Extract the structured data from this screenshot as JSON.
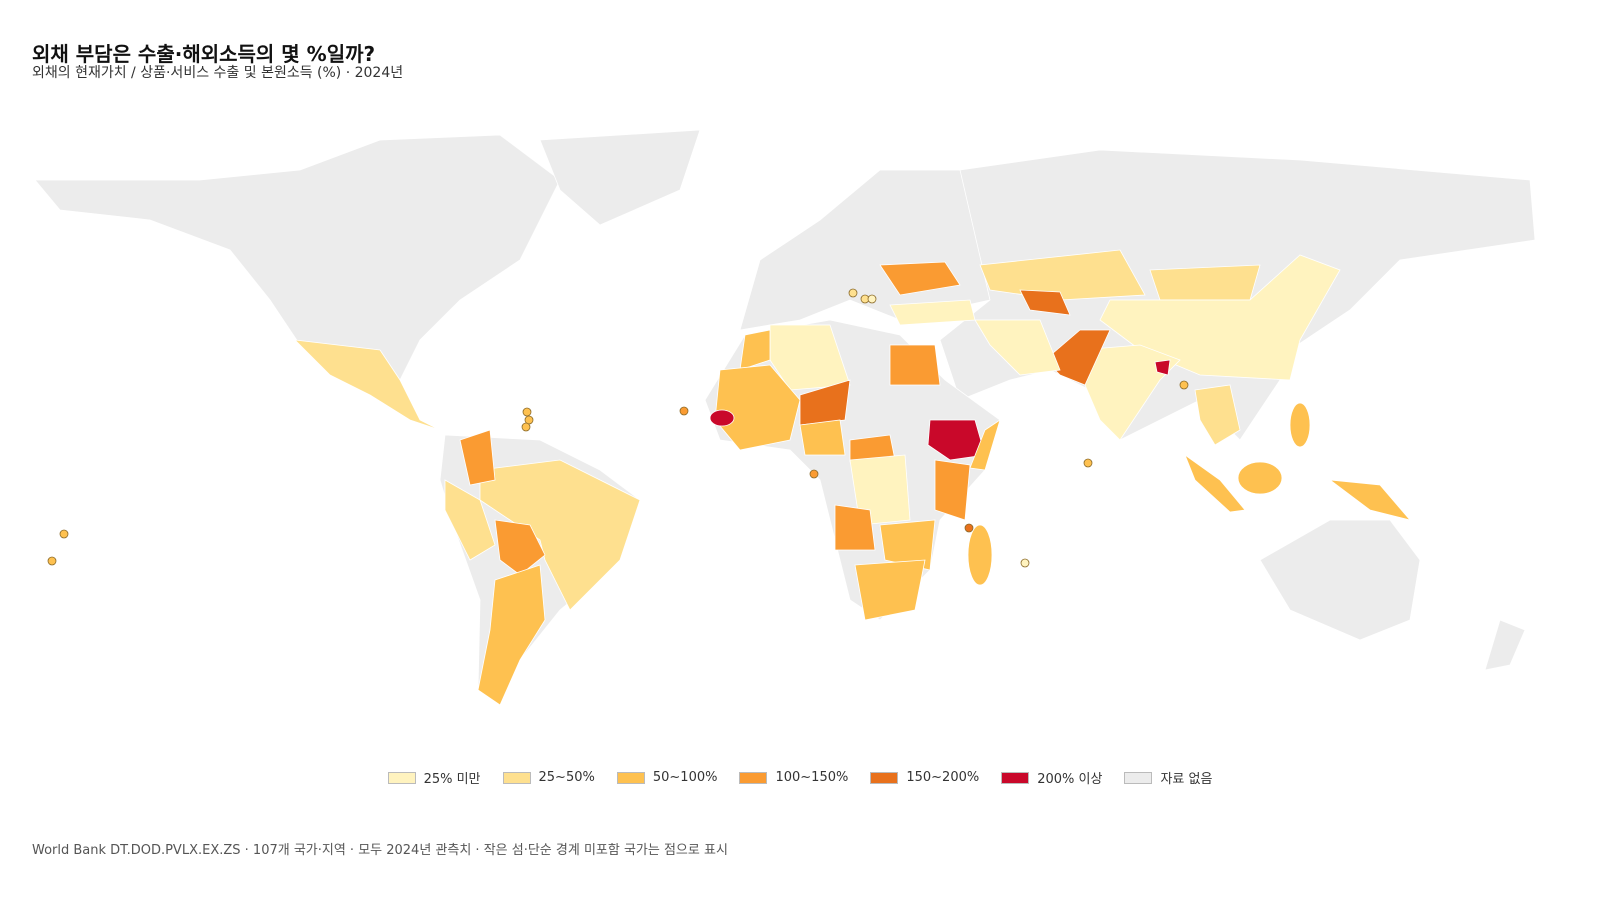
{
  "header": {
    "title": "외채 부담은 수출·해외소득의 몇 %일까?",
    "subtitle": "외채의 현재가치 / 상품·서비스 수출 및 본원소득 (%) · 2024년"
  },
  "legend": {
    "items": [
      {
        "label": "25% 미만",
        "color": "#fff3bf"
      },
      {
        "label": "25~50%",
        "color": "#fee08f"
      },
      {
        "label": "50~100%",
        "color": "#fec150"
      },
      {
        "label": "100~150%",
        "color": "#fa9b32"
      },
      {
        "label": "150~200%",
        "color": "#e8711c"
      },
      {
        "label": "200% 이상",
        "color": "#c9082a"
      },
      {
        "label": "자료 없음",
        "color": "#ececec"
      }
    ]
  },
  "footer": {
    "source": "World Bank DT.DOD.PVLX.EX.ZS · 107개 국가·지역 · 모두 2024년 관측치 · 작은 섬·단순 경계 미포함 국가는 점으로 표시"
  }
}
